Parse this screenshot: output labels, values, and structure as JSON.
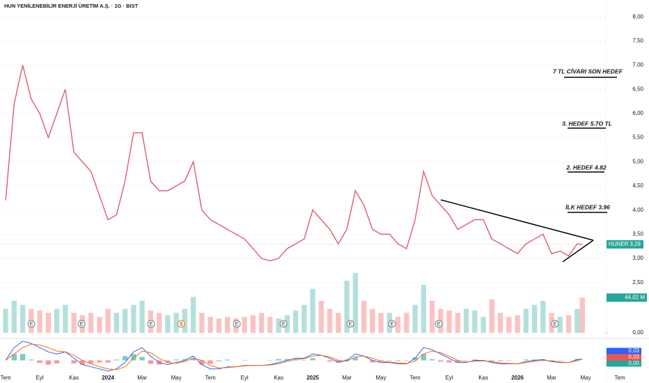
{
  "chart_data": {
    "type": "line",
    "title": "HUN YENİLENEBİLİR ENERJİ ÜRETİM A.Ş. · 1G · BIST",
    "symbol": "HUNER",
    "x": [
      0,
      0.5,
      1,
      1.5,
      2,
      2.5,
      3,
      3.5,
      4,
      4.5,
      5,
      5.5,
      6,
      6.5,
      7,
      7.5,
      8,
      8.5,
      9,
      9.5,
      10,
      10.5,
      11,
      11.5,
      12,
      12.5,
      13,
      13.5,
      14,
      14.5,
      15,
      15.5,
      16,
      16.5,
      17,
      17.5,
      18,
      18.5,
      19,
      19.5,
      20,
      20.5,
      21,
      21.5,
      22,
      22.5,
      23,
      23.5,
      24,
      24.5,
      25,
      25.5,
      26,
      26.5,
      27,
      27.5,
      28,
      28.5,
      29,
      29.5,
      30,
      30.5,
      31,
      31.5,
      32,
      32.5,
      33,
      33.5,
      33.8
    ],
    "values": [
      4.2,
      6.2,
      7.0,
      6.3,
      6.0,
      5.5,
      6.0,
      6.5,
      5.2,
      5.0,
      4.8,
      4.3,
      3.8,
      3.9,
      4.6,
      5.6,
      5.6,
      4.6,
      4.4,
      4.4,
      4.5,
      4.6,
      5.0,
      4.0,
      3.8,
      3.7,
      3.6,
      3.5,
      3.4,
      3.2,
      3.0,
      2.95,
      3.0,
      3.2,
      3.3,
      3.4,
      4.0,
      3.8,
      3.6,
      3.3,
      3.6,
      4.4,
      4.1,
      3.6,
      3.5,
      3.5,
      3.3,
      3.2,
      3.8,
      4.8,
      4.3,
      4.1,
      3.9,
      3.6,
      3.7,
      3.8,
      3.8,
      3.4,
      3.3,
      3.2,
      3.1,
      3.3,
      3.4,
      3.5,
      3.1,
      3.15,
      3.05,
      3.3,
      3.29
    ],
    "last_price_label": "3,29",
    "color": "#e0596a",
    "up_color": "#26a69a",
    "down_color": "#ef5350",
    "xlim": [
      -0.33,
      35.18
    ],
    "ylim": [
      1.5,
      8.35
    ],
    "xticks": [
      {
        "value": 0,
        "label": "Tem"
      },
      {
        "value": 2,
        "label": "Eyl"
      },
      {
        "value": 4,
        "label": "Kas"
      },
      {
        "value": 6,
        "label": "2024"
      },
      {
        "value": 8,
        "label": "Mar"
      },
      {
        "value": 10,
        "label": "May"
      },
      {
        "value": 12,
        "label": "Tem"
      },
      {
        "value": 14,
        "label": "Eyl"
      },
      {
        "value": 16,
        "label": "Kas"
      },
      {
        "value": 18,
        "label": "2025"
      },
      {
        "value": 20,
        "label": "Mar"
      },
      {
        "value": 22,
        "label": "May"
      },
      {
        "value": 24,
        "label": "Tem"
      },
      {
        "value": 26,
        "label": "Eyl"
      },
      {
        "value": 28,
        "label": "Kas"
      },
      {
        "value": 30,
        "label": "2026"
      },
      {
        "value": 32,
        "label": "Mar"
      },
      {
        "value": 34,
        "label": "May"
      },
      {
        "value": 36,
        "label": "Tem"
      }
    ],
    "yticks": [
      {
        "value": 8,
        "label": "8,00"
      },
      {
        "value": 7.5,
        "label": "7,50"
      },
      {
        "value": 7,
        "label": "7,00"
      },
      {
        "value": 6.5,
        "label": "6,50"
      },
      {
        "value": 6,
        "label": "6,00"
      },
      {
        "value": 5.5,
        "label": "5,50"
      },
      {
        "value": 5,
        "label": "5,00"
      },
      {
        "value": 4.5,
        "label": "4,50"
      },
      {
        "value": 4,
        "label": "4,00"
      },
      {
        "value": 3.5,
        "label": "3,50"
      },
      {
        "value": 3,
        "label": "3,00"
      },
      {
        "value": 2.5,
        "label": "2,50"
      }
    ],
    "volume": [
      30,
      40,
      35,
      30,
      28,
      25,
      30,
      35,
      25,
      22,
      25,
      20,
      30,
      25,
      30,
      35,
      40,
      28,
      25,
      22,
      25,
      30,
      45,
      25,
      20,
      18,
      20,
      18,
      20,
      22,
      25,
      20,
      18,
      22,
      28,
      35,
      55,
      40,
      30,
      25,
      65,
      75,
      40,
      30,
      25,
      25,
      20,
      25,
      35,
      60,
      40,
      30,
      28,
      25,
      30,
      28,
      20,
      42,
      25,
      20,
      22,
      30,
      35,
      40,
      25,
      20,
      22,
      30,
      44.02
    ],
    "last_volume_label": "44,02 M",
    "volume_ylim": [
      0,
      120
    ],
    "volume_yticks": [
      {
        "value": 0,
        "label": "0,00"
      }
    ],
    "macd": [
      0,
      0.3,
      0.45,
      0.4,
      0.3,
      0.2,
      0.15,
      0.2,
      0.05,
      -0.1,
      -0.15,
      -0.2,
      -0.25,
      -0.2,
      -0.05,
      0.2,
      0.3,
      0.1,
      -0.05,
      -0.1,
      -0.05,
      0,
      0.1,
      -0.1,
      -0.2,
      -0.2,
      -0.15,
      -0.15,
      -0.12,
      -0.12,
      -0.12,
      -0.1,
      -0.05,
      0,
      0.05,
      0.05,
      0.15,
      0.12,
      0.05,
      -0.05,
      0,
      0.15,
      0.1,
      0,
      -0.05,
      -0.05,
      -0.08,
      -0.08,
      0.05,
      0.3,
      0.25,
      0.15,
      0.05,
      -0.05,
      -0.05,
      0,
      0,
      -0.05,
      -0.08,
      -0.08,
      -0.08,
      -0.03,
      0,
      0.02,
      -0.03,
      -0.05,
      -0.05,
      0.02,
      0.03
    ],
    "signal": [
      0,
      0.15,
      0.3,
      0.38,
      0.36,
      0.3,
      0.22,
      0.2,
      0.12,
      0,
      -0.08,
      -0.15,
      -0.2,
      -0.22,
      -0.15,
      0.05,
      0.22,
      0.18,
      0.05,
      -0.05,
      -0.07,
      -0.03,
      0.05,
      0,
      -0.12,
      -0.18,
      -0.17,
      -0.15,
      -0.13,
      -0.12,
      -0.12,
      -0.11,
      -0.08,
      -0.03,
      0.02,
      0.04,
      0.1,
      0.12,
      0.08,
      0,
      -0.02,
      0.08,
      0.1,
      0.05,
      -0.02,
      -0.04,
      -0.06,
      -0.07,
      -0.02,
      0.15,
      0.22,
      0.18,
      0.1,
      0,
      -0.04,
      -0.02,
      -0.01,
      -0.03,
      -0.06,
      -0.07,
      -0.08,
      -0.05,
      -0.02,
      0,
      -0.01,
      -0.04,
      -0.05,
      -0.01,
      0.03
    ],
    "histogram": [
      0,
      0.15,
      0.15,
      0.02,
      -0.06,
      -0.1,
      -0.07,
      0,
      -0.07,
      -0.1,
      -0.07,
      -0.05,
      -0.05,
      0.02,
      0.1,
      0.15,
      0.08,
      -0.08,
      -0.1,
      -0.05,
      0.02,
      0.03,
      0.05,
      -0.1,
      -0.08,
      -0.02,
      0.02,
      0,
      0.01,
      0,
      0,
      0.01,
      0.03,
      0.03,
      0.03,
      0.01,
      0.05,
      0,
      -0.03,
      -0.05,
      0.02,
      0.07,
      0,
      -0.05,
      -0.03,
      -0.01,
      -0.02,
      -0.01,
      0.07,
      0.15,
      0.03,
      -0.03,
      -0.05,
      -0.05,
      -0.01,
      0.02,
      0.01,
      -0.02,
      -0.02,
      -0.01,
      0,
      0.02,
      0.02,
      0.02,
      -0.02,
      -0.01,
      0,
      0.03,
      0
    ],
    "macd_value_labels": [
      "0,03",
      "0,03",
      "0,00"
    ],
    "macd_color": "#2962ff",
    "signal_color": "#ff6d00",
    "macd_ylim": [
      -0.45,
      0.45
    ],
    "event_markers": [
      {
        "x": 1.51,
        "label": "E"
      },
      {
        "x": 4.45,
        "label": "E"
      },
      {
        "x": 8.53,
        "label": "E"
      },
      {
        "x": 10.29,
        "label": "S"
      },
      {
        "x": 13.55,
        "label": "E"
      },
      {
        "x": 16.29,
        "label": "E"
      },
      {
        "x": 20.2,
        "label": "E"
      },
      {
        "x": 22.65,
        "label": "E"
      },
      {
        "x": 25.39,
        "label": "E"
      },
      {
        "x": 32.2,
        "label": "E"
      }
    ],
    "annotations": [
      "7 TL CİVARI SON HEDEF",
      "3. HEDEF 5.7O TL",
      "2. HEDEF 4.82",
      "İLK HEDEF 3.96"
    ]
  }
}
